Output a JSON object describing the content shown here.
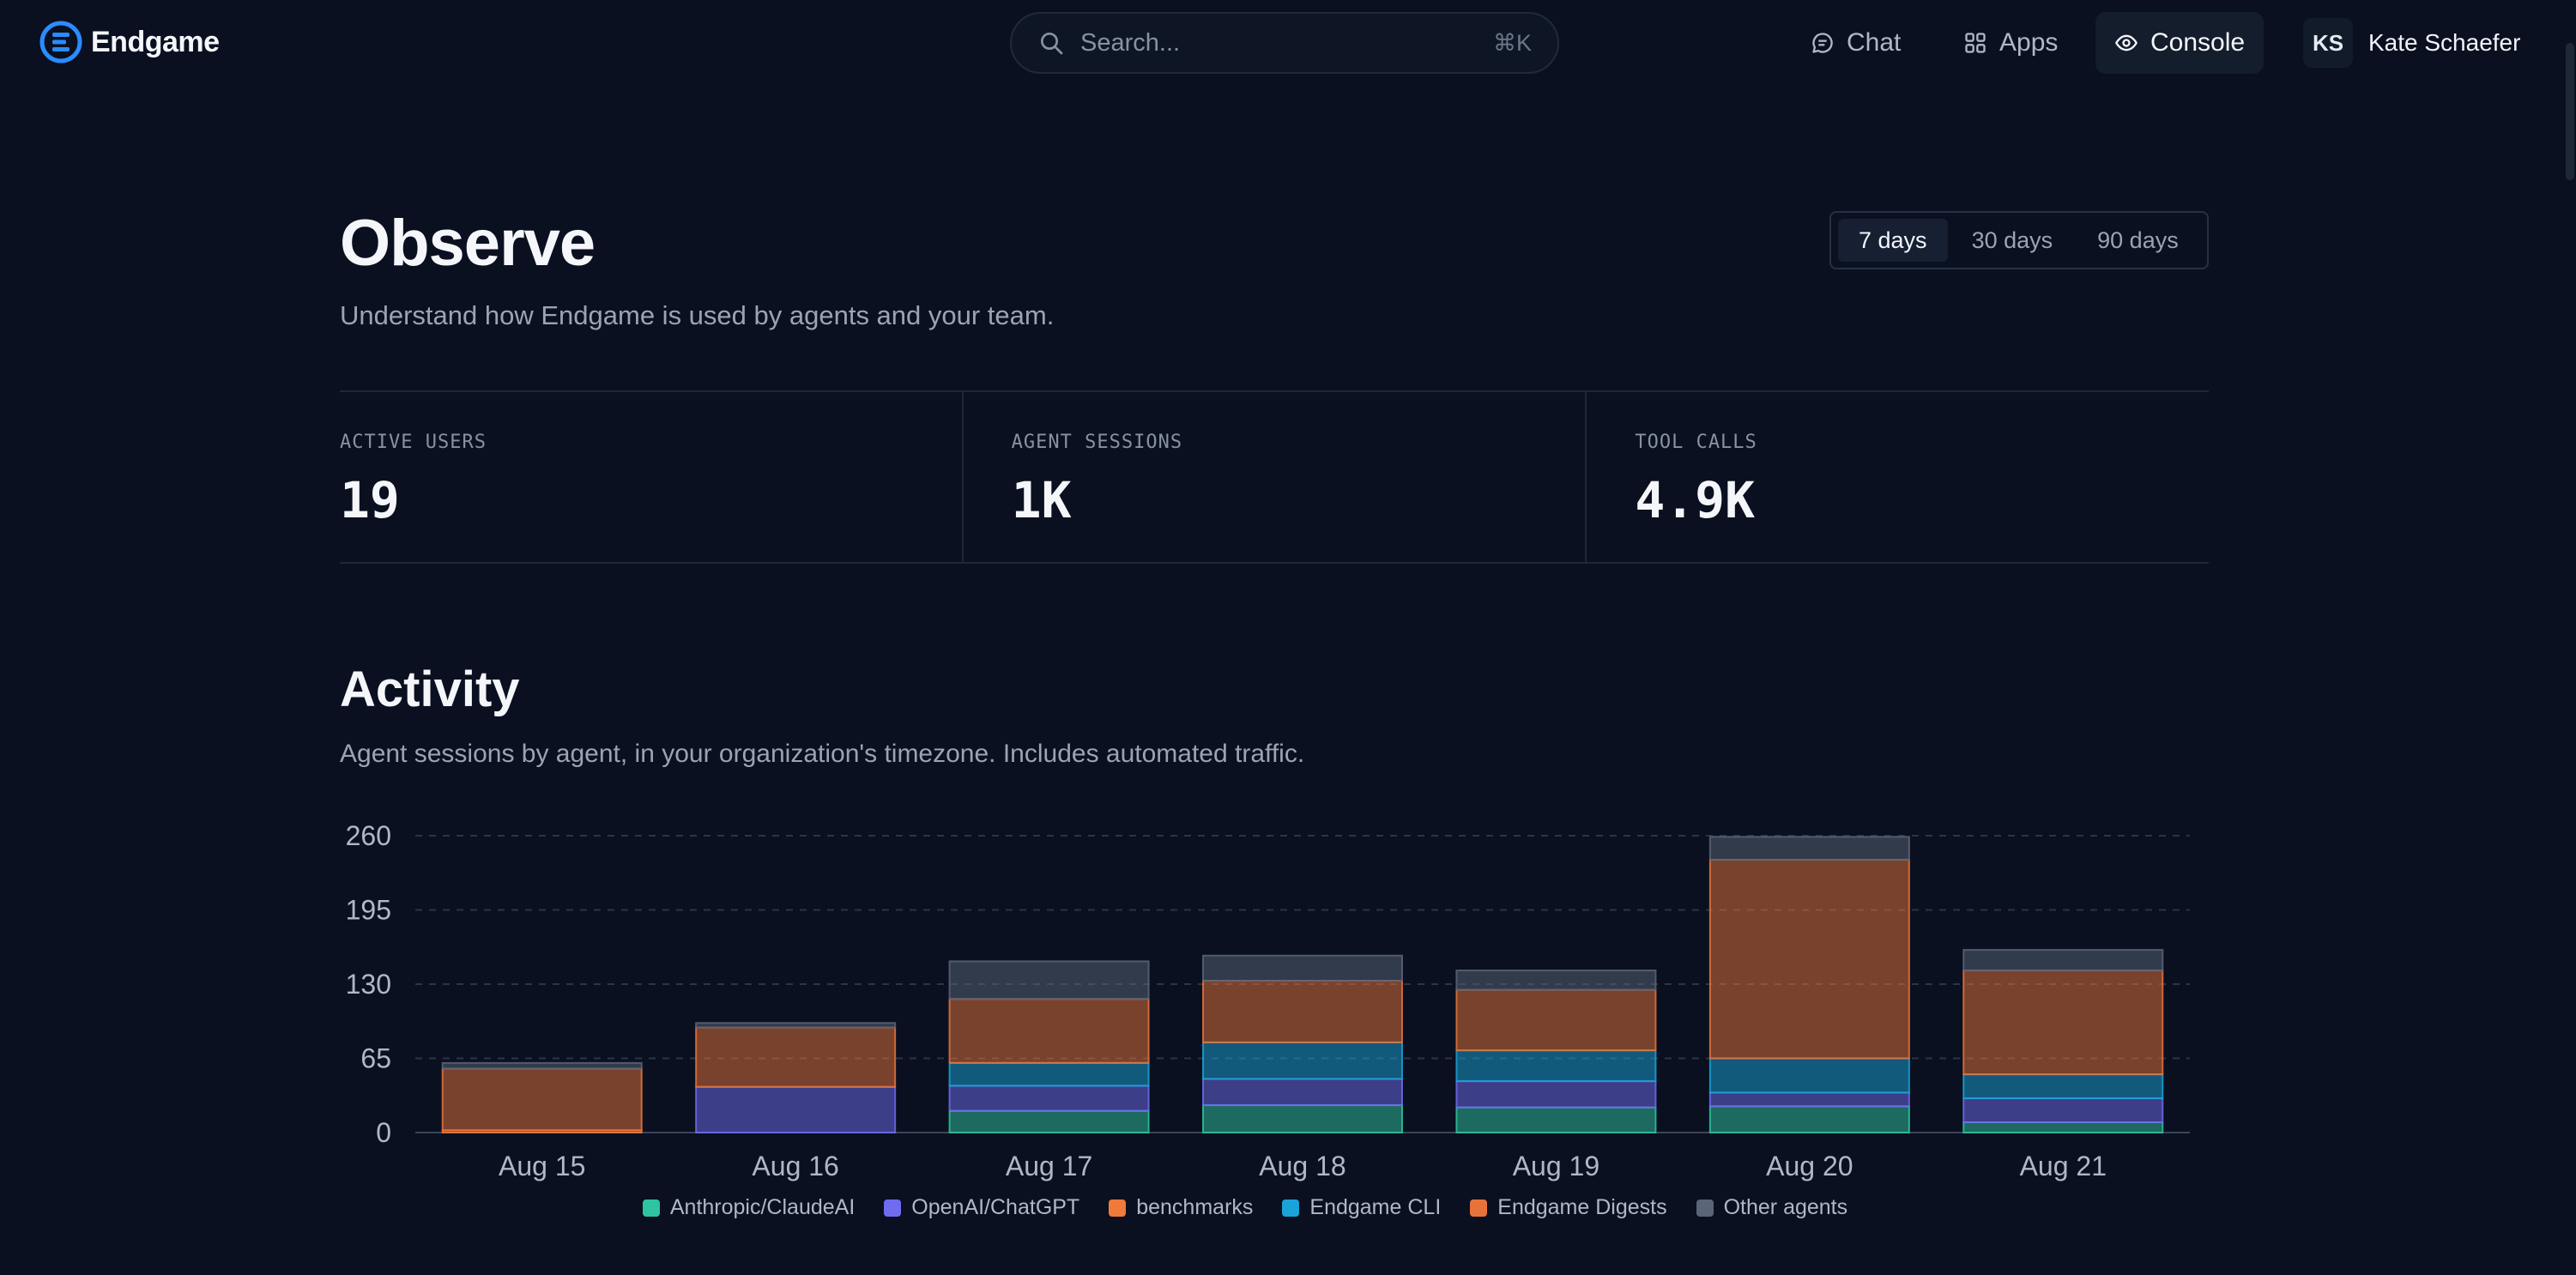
{
  "brand": {
    "name": "Endgame"
  },
  "search": {
    "placeholder": "Search...",
    "shortcut": "⌘K"
  },
  "nav": {
    "chat": "Chat",
    "apps": "Apps",
    "console": "Console"
  },
  "user": {
    "initials": "KS",
    "name": "Kate Schaefer"
  },
  "page": {
    "title": "Observe",
    "subtitle": "Understand how Endgame is used by agents and your team."
  },
  "range": {
    "options": [
      "7 days",
      "30 days",
      "90 days"
    ],
    "selected": "7 days"
  },
  "stats": [
    {
      "label": "ACTIVE USERS",
      "value": "19"
    },
    {
      "label": "AGENT SESSIONS",
      "value": "1K"
    },
    {
      "label": "TOOL CALLS",
      "value": "4.9K"
    }
  ],
  "activity": {
    "title": "Activity",
    "subtitle": "Agent sessions by agent, in your organization's timezone. Includes automated traffic."
  },
  "colors": {
    "Anthropic/ClaudeAI": "#2ec4a0",
    "OpenAI/ChatGPT": "#6f6cf0",
    "benchmarks": "#f07a3a",
    "Endgame CLI": "#19a3d8",
    "Endgame Digests": "#e8733a",
    "Other agents": "#5a6577"
  },
  "chart_data": {
    "type": "bar",
    "stacked": true,
    "categories": [
      "Aug 15",
      "Aug 16",
      "Aug 17",
      "Aug 18",
      "Aug 19",
      "Aug 20",
      "Aug 21"
    ],
    "ylim": [
      0,
      260
    ],
    "yticks": [
      0,
      65,
      130,
      195,
      260
    ],
    "grid": true,
    "legend": "bottom",
    "series": [
      {
        "name": "Anthropic/ClaudeAI",
        "values": [
          0,
          0,
          19,
          24,
          22,
          23,
          9
        ]
      },
      {
        "name": "OpenAI/ChatGPT",
        "values": [
          0,
          40,
          22,
          23,
          23,
          12,
          21
        ]
      },
      {
        "name": "benchmarks",
        "values": [
          2,
          0,
          0,
          0,
          0,
          0,
          0
        ]
      },
      {
        "name": "Endgame CLI",
        "values": [
          0,
          0,
          20,
          32,
          27,
          30,
          21
        ]
      },
      {
        "name": "Endgame Digests",
        "values": [
          54,
          52,
          56,
          54,
          53,
          174,
          91
        ]
      },
      {
        "name": "Other agents",
        "values": [
          5,
          4,
          33,
          22,
          17,
          20,
          18
        ]
      }
    ]
  }
}
